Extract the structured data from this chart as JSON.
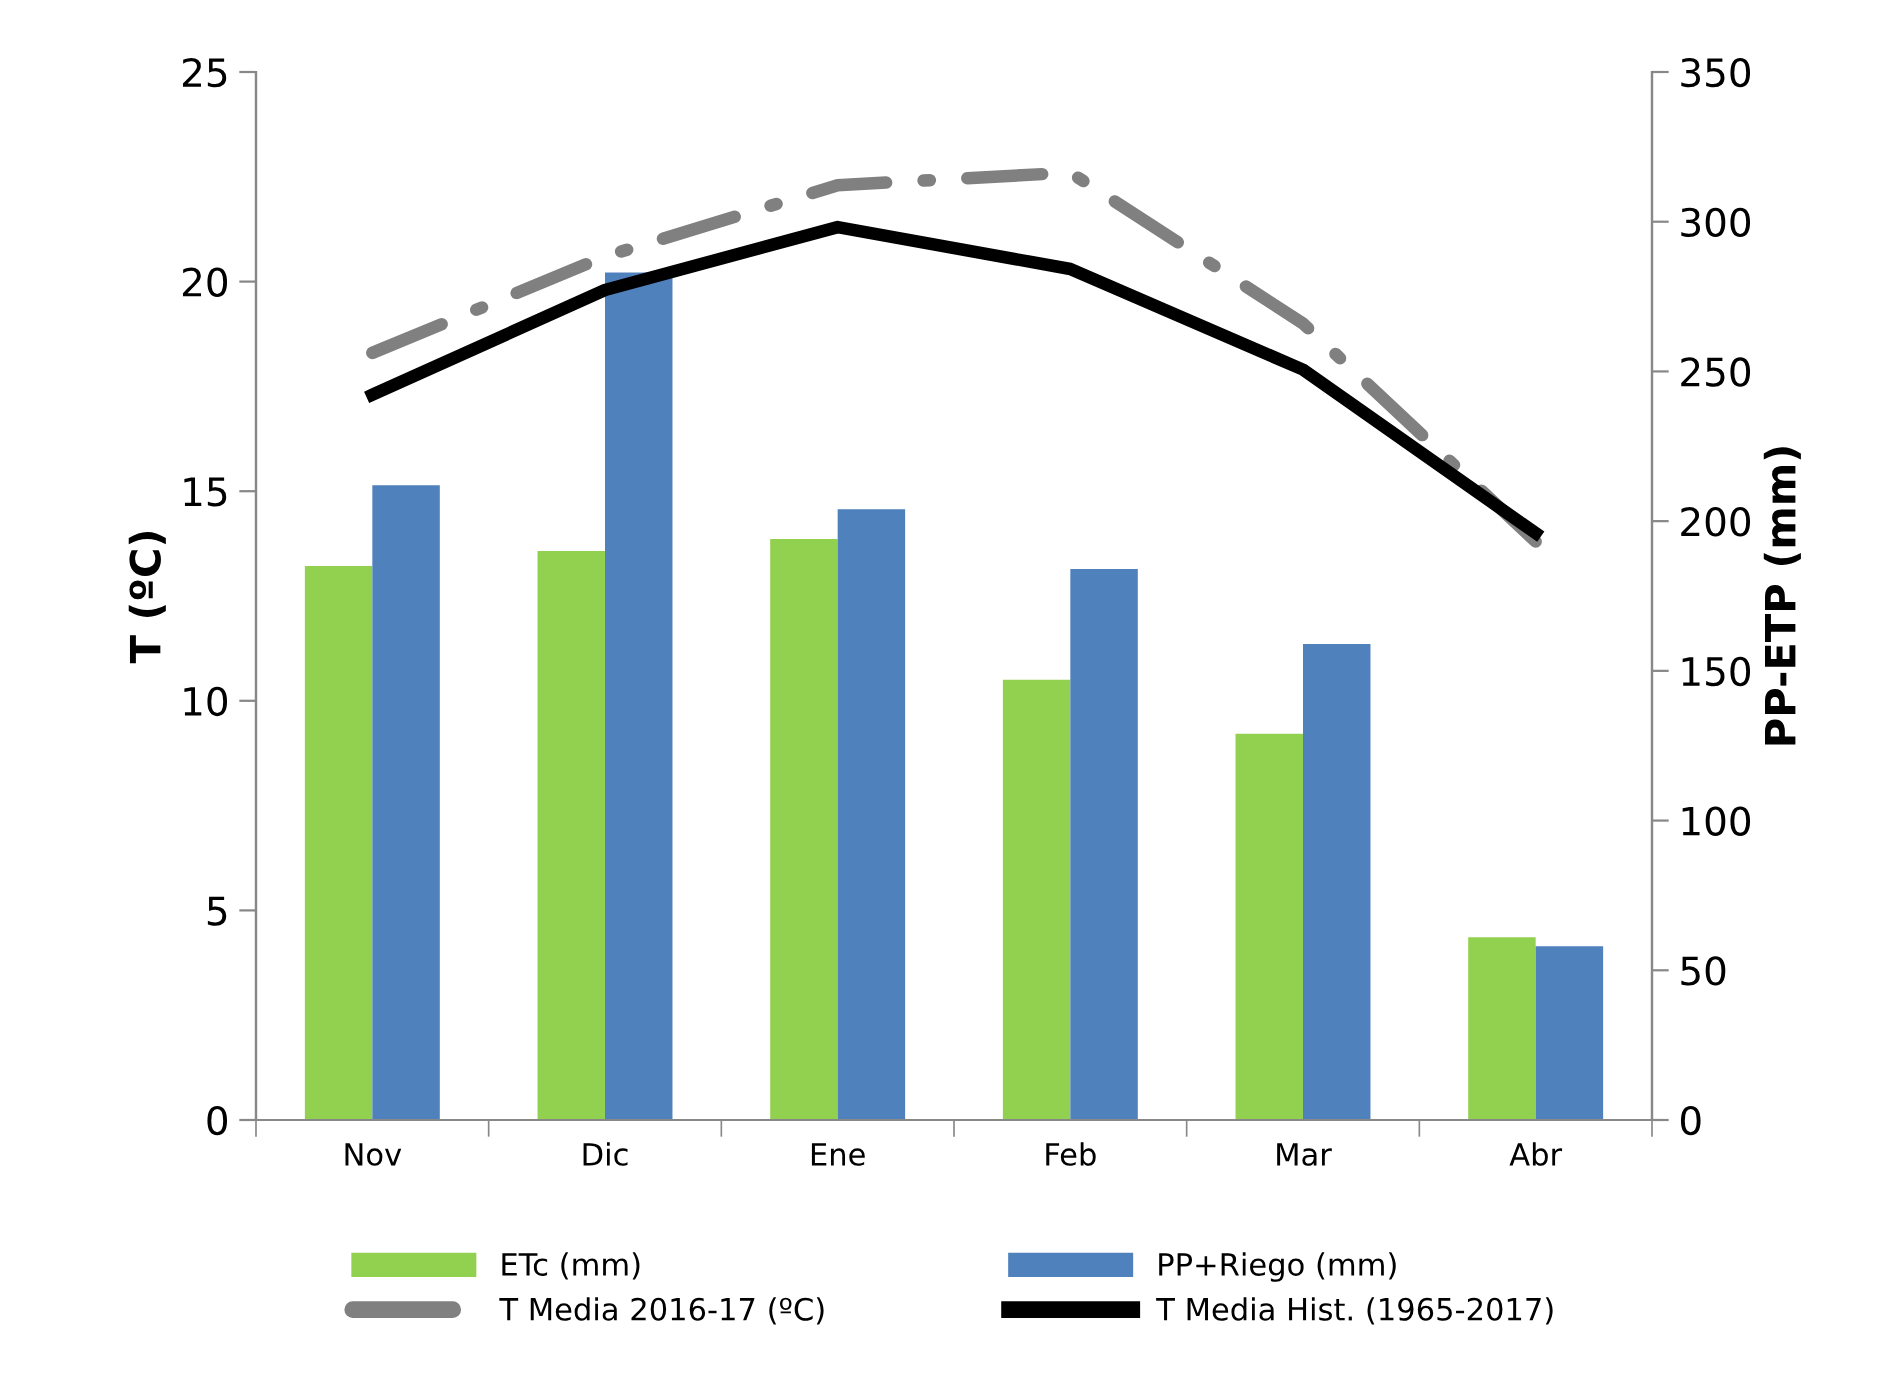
{
  "chart_data": {
    "type": "bar",
    "ylabel": "T (ºC)",
    "y2label": "PP-ETP (mm)",
    "categories": [
      "Nov",
      "Dic",
      "Ene",
      "Feb",
      "Mar",
      "Abr"
    ],
    "series": [
      {
        "name": "ETc (mm)",
        "axis": "y2",
        "color": "#92d050",
        "values": [
          185,
          190,
          194,
          147,
          129,
          61
        ]
      },
      {
        "name": "PP+Riego (mm)",
        "axis": "y2",
        "color": "#4f81bd",
        "values": [
          212,
          283,
          204,
          184,
          159,
          58
        ]
      },
      {
        "name": "T Media 2016-17 (ºC)",
        "type": "line",
        "axis": "y",
        "color": "#808080",
        "line_style": "dashed",
        "values": [
          18.3,
          20.6,
          22.3,
          22.6,
          19.0,
          13.8
        ]
      },
      {
        "name": "T Media Hist. (1965-2017)",
        "type": "line",
        "axis": "y",
        "color": "#000000",
        "line_style": "solid",
        "values": [
          17.3,
          19.8,
          21.3,
          20.3,
          17.9,
          14.0
        ]
      }
    ],
    "ylim": [
      0,
      25
    ],
    "yticks": [
      0,
      5,
      10,
      15,
      20,
      25
    ],
    "y2lim": [
      0,
      350
    ],
    "y2ticks": [
      0,
      50,
      100,
      150,
      200,
      250,
      300,
      350
    ],
    "grid": false,
    "legend": "bottom"
  }
}
